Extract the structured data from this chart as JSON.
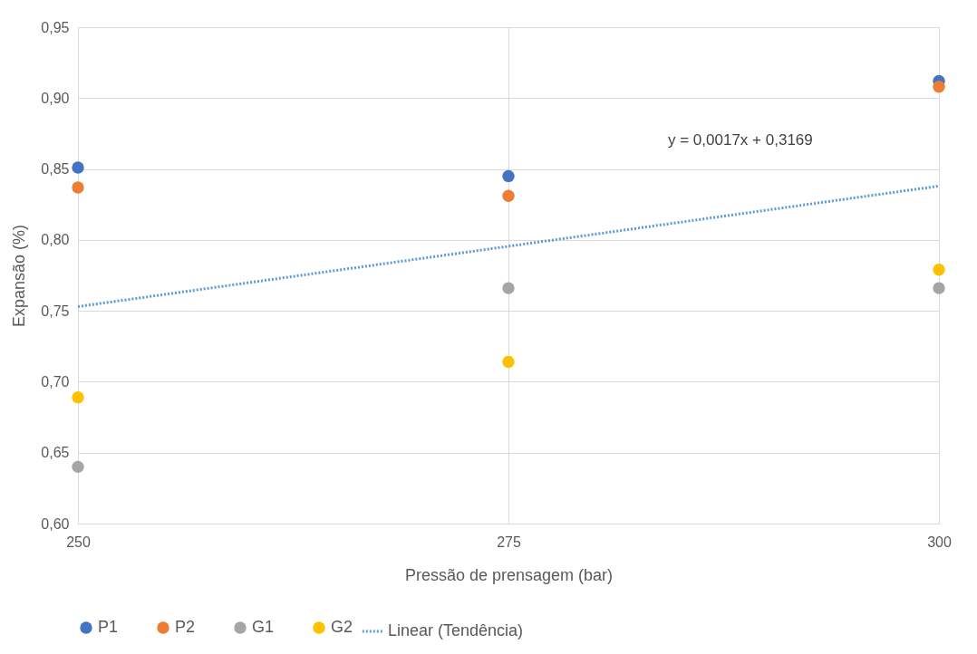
{
  "chart_data": {
    "type": "scatter",
    "xlabel": "Pressão de prensagem (bar)",
    "ylabel": "Expansão (%)",
    "x": [
      250,
      275,
      300
    ],
    "series": [
      {
        "name": "P1",
        "color": "#4472c4",
        "values": [
          0.851,
          0.845,
          0.912
        ]
      },
      {
        "name": "P2",
        "color": "#ed7d31",
        "values": [
          0.837,
          0.831,
          0.908
        ]
      },
      {
        "name": "G1",
        "color": "#a5a5a5",
        "values": [
          0.64,
          0.766,
          0.766
        ]
      },
      {
        "name": "G2",
        "color": "#ffc000",
        "values": [
          0.689,
          0.714,
          0.779
        ]
      },
      {
        "name": "Linear (Tendência)",
        "type": "line",
        "color": "#5b9bd5",
        "line_style": "dotted",
        "marker": "none",
        "x": [
          250,
          300
        ],
        "values": [
          0.753,
          0.838
        ]
      }
    ],
    "xlim": [
      250,
      300
    ],
    "xticks": [
      250,
      275,
      300
    ],
    "ylim": [
      0.6,
      0.95
    ],
    "yticks": [
      {
        "value": 0.6,
        "label": "0,60"
      },
      {
        "value": 0.65,
        "label": "0,65"
      },
      {
        "value": 0.7,
        "label": "0,70"
      },
      {
        "value": 0.75,
        "label": "0,75"
      },
      {
        "value": 0.8,
        "label": "0,80"
      },
      {
        "value": 0.85,
        "label": "0,85"
      },
      {
        "value": 0.9,
        "label": "0,90"
      },
      {
        "value": 0.95,
        "label": "0,95"
      }
    ],
    "annotations": [
      "y = 0,0017x + 0,3169"
    ],
    "grid": true,
    "legend": "bottom",
    "marker": "circle"
  }
}
